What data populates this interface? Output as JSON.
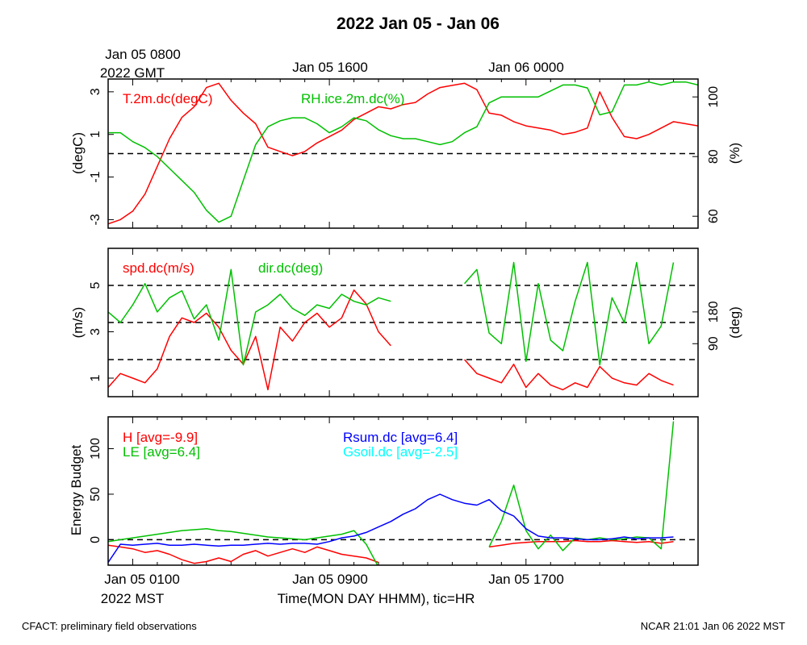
{
  "title": "2022 Jan 05 - Jan 06",
  "top_axis": {
    "labels": [
      "Jan 05 0800",
      "Jan 05 1600",
      "Jan 06 0000"
    ],
    "tz_label": "2022 GMT"
  },
  "bottom_axis": {
    "labels": [
      "Jan 05 0100",
      "Jan 05 0900",
      "Jan 05 1700"
    ],
    "tz_label": "2022 MST",
    "xlabel": "Time(MON DAY HHMM), tic=HR"
  },
  "footer": {
    "left": "CFACT: preliminary field observations",
    "right": "NCAR 21:01 Jan 06 2022 MST"
  },
  "colors": {
    "red": "#ff0000",
    "green": "#00c000",
    "blue": "#0000ff",
    "cyan": "#00ffff"
  },
  "chart_data": [
    {
      "type": "line",
      "panel": "temperature / humidity",
      "xlabel": "",
      "ylabel": "(degC)",
      "ylabel_right": "(%)",
      "ylim": [
        -3.4,
        3.6
      ],
      "ylim_right": [
        56,
        106
      ],
      "yticks": [
        -3,
        -1,
        1,
        3
      ],
      "yticks_right": [
        60,
        80,
        100
      ],
      "hlines": [
        0.1
      ],
      "series": [
        {
          "name": "T.2m.dc(degC)",
          "color": "red",
          "axis": "left",
          "x": [
            0,
            0.5,
            1,
            1.5,
            2,
            2.5,
            3,
            3.5,
            4,
            4.5,
            5,
            5.5,
            6,
            6.5,
            7,
            7.5,
            8,
            8.5,
            9,
            9.5,
            10,
            10.5,
            11,
            11.5,
            12,
            12.5,
            13,
            13.5,
            14,
            14.5,
            15,
            15.5,
            16,
            16.5,
            17,
            17.5,
            18,
            18.5,
            19,
            19.5,
            20,
            20.5,
            21,
            21.5,
            22,
            22.5,
            23,
            23.5,
            24
          ],
          "values": [
            -3.2,
            -3.0,
            -2.6,
            -1.8,
            -0.5,
            0.8,
            1.8,
            2.3,
            3.2,
            3.4,
            2.6,
            2.0,
            1.5,
            0.4,
            0.2,
            0.0,
            0.2,
            0.6,
            0.9,
            1.2,
            1.7,
            2.0,
            2.3,
            2.2,
            2.4,
            2.5,
            2.9,
            3.2,
            3.3,
            3.4,
            3.1,
            2.0,
            1.9,
            1.6,
            1.4,
            1.3,
            1.2,
            1.0,
            1.1,
            1.3,
            3.0,
            1.8,
            0.9,
            0.8,
            1.0,
            1.3,
            1.6,
            1.5,
            1.4
          ]
        },
        {
          "name": "RH.ice.2m.dc(%)",
          "color": "green",
          "axis": "right",
          "x": [
            0,
            0.5,
            1,
            1.5,
            2,
            2.5,
            3,
            3.5,
            4,
            4.5,
            5,
            5.5,
            6,
            6.5,
            7,
            7.5,
            8,
            8.5,
            9,
            9.5,
            10,
            10.5,
            11,
            11.5,
            12,
            12.5,
            13,
            13.5,
            14,
            14.5,
            15,
            15.5,
            16,
            16.5,
            17,
            17.5,
            18,
            18.5,
            19,
            19.5,
            20,
            20.5,
            21,
            21.5,
            22,
            22.5,
            23,
            23.5,
            24
          ],
          "values": [
            88,
            88,
            85,
            83,
            80,
            76,
            72,
            68,
            62,
            58,
            60,
            72,
            84,
            90,
            92,
            93,
            93,
            91,
            88,
            90,
            93,
            92,
            89,
            87,
            86,
            86,
            85,
            84,
            85,
            88,
            90,
            98,
            100,
            100,
            100,
            100,
            102,
            104,
            104,
            103,
            94,
            95,
            104,
            104,
            105,
            104,
            105,
            105,
            104
          ]
        }
      ]
    },
    {
      "type": "line",
      "panel": "wind",
      "xlabel": "",
      "ylabel": "(m/s)",
      "ylabel_right": "(deg)",
      "ylim": [
        0.2,
        6.6
      ],
      "ylim_right": [
        -60,
        360
      ],
      "yticks": [
        1,
        3,
        5
      ],
      "yticks_right": [
        90,
        180
      ],
      "hlines": [
        1.8,
        3.4,
        5.0
      ],
      "series": [
        {
          "name": "spd.dc(m/s)",
          "color": "red",
          "axis": "left",
          "x": [
            0,
            0.5,
            1,
            1.5,
            2,
            2.5,
            3,
            3.5,
            4,
            4.5,
            5,
            5.5,
            6,
            6.5,
            7,
            7.5,
            8,
            8.5,
            9,
            9.5,
            10,
            10.5,
            11,
            11.5,
            14.5,
            15,
            15.5,
            16,
            16.5,
            17,
            17.5,
            18,
            18.5,
            19,
            19.5,
            20,
            20.5,
            21,
            21.5,
            22,
            22.5,
            23
          ],
          "values": [
            0.6,
            1.2,
            1.0,
            0.8,
            1.4,
            2.8,
            3.6,
            3.4,
            3.8,
            3.2,
            2.2,
            1.6,
            2.8,
            0.5,
            3.2,
            2.6,
            3.4,
            3.8,
            3.2,
            3.6,
            4.8,
            4.2,
            3.0,
            2.4,
            1.8,
            1.2,
            1.0,
            0.8,
            1.6,
            0.6,
            1.2,
            0.7,
            0.5,
            0.8,
            0.6,
            1.5,
            1.0,
            0.8,
            0.7,
            1.2,
            0.9,
            0.7
          ]
        },
        {
          "name": "dir.dc(deg)",
          "color": "green",
          "axis": "right",
          "x": [
            0,
            0.5,
            1,
            1.5,
            2,
            2.5,
            3,
            3.5,
            4,
            4.5,
            5,
            5.5,
            6,
            6.5,
            7,
            7.5,
            8,
            8.5,
            9,
            9.5,
            10,
            10.5,
            11,
            11.5,
            14.5,
            15,
            15.5,
            16,
            16.5,
            17,
            17.5,
            18,
            18.5,
            19,
            19.5,
            20,
            20.5,
            21,
            21.5,
            22,
            22.5,
            23
          ],
          "values": [
            180,
            150,
            200,
            260,
            180,
            220,
            240,
            160,
            200,
            100,
            300,
            30,
            180,
            200,
            230,
            190,
            170,
            200,
            190,
            230,
            210,
            200,
            220,
            210,
            260,
            300,
            120,
            90,
            320,
            40,
            260,
            100,
            70,
            210,
            320,
            30,
            220,
            150,
            320,
            90,
            140,
            320
          ]
        }
      ]
    },
    {
      "type": "line",
      "panel": "energy budget",
      "xlabel": "Time(MON DAY HHMM), tic=HR",
      "ylabel": "Energy Budget",
      "ylim": [
        -28,
        135
      ],
      "yticks": [
        0,
        50,
        100
      ],
      "hlines": [
        0
      ],
      "series": [
        {
          "name": "H [avg=-9.9]",
          "color": "red",
          "x": [
            0,
            0.5,
            1,
            1.5,
            2,
            2.5,
            3,
            3.5,
            4,
            4.5,
            5,
            5.5,
            6,
            6.5,
            7,
            7.5,
            8,
            8.5,
            9,
            9.5,
            10,
            10.5,
            11,
            15.5,
            16,
            16.5,
            17,
            17.5,
            18,
            18.5,
            19,
            19.5,
            20,
            20.5,
            21,
            21.5,
            22,
            22.5,
            23
          ],
          "values": [
            -6,
            -8,
            -10,
            -14,
            -12,
            -16,
            -22,
            -26,
            -24,
            -20,
            -24,
            -16,
            -12,
            -18,
            -14,
            -10,
            -14,
            -8,
            -12,
            -16,
            -18,
            -20,
            -25,
            -8,
            -6,
            -4,
            -3,
            -2,
            -2,
            -2,
            -1,
            -2,
            -2,
            -1,
            -2,
            -3,
            -2,
            -4,
            -2
          ]
        },
        {
          "name": "LE [avg=6.4]",
          "color": "green",
          "x": [
            0,
            0.5,
            1,
            1.5,
            2,
            2.5,
            3,
            3.5,
            4,
            4.5,
            5,
            5.5,
            6,
            6.5,
            7,
            7.5,
            8,
            8.5,
            9,
            9.5,
            10,
            10.5,
            11,
            15.5,
            16,
            16.5,
            17,
            17.5,
            18,
            18.5,
            19,
            19.5,
            20,
            20.5,
            21,
            21.5,
            22,
            22.5,
            23
          ],
          "values": [
            -2,
            0,
            2,
            4,
            6,
            8,
            10,
            11,
            12,
            10,
            9,
            7,
            5,
            3,
            2,
            1,
            0,
            2,
            4,
            6,
            10,
            -5,
            -30,
            -8,
            20,
            60,
            10,
            -10,
            5,
            -12,
            2,
            0,
            2,
            0,
            1,
            3,
            2,
            -10,
            130
          ]
        },
        {
          "name": "Rsum.dc [avg=6.4]",
          "color": "blue",
          "x": [
            0,
            0.5,
            1,
            1.5,
            2,
            2.5,
            3,
            3.5,
            4,
            4.5,
            5,
            5.5,
            6,
            6.5,
            7,
            7.5,
            8,
            8.5,
            9,
            9.5,
            10,
            10.5,
            11,
            11.5,
            12,
            12.5,
            13,
            13.5,
            14,
            14.5,
            15,
            15.5,
            16,
            16.5,
            17,
            17.5,
            18,
            18.5,
            19,
            19.5,
            20,
            20.5,
            21,
            21.5,
            22,
            22.5,
            23
          ],
          "values": [
            -25,
            -5,
            -6,
            -5,
            -4,
            -6,
            -6,
            -5,
            -6,
            -7,
            -6,
            -6,
            -5,
            -4,
            -5,
            -4,
            -4,
            -5,
            -2,
            2,
            4,
            8,
            14,
            20,
            28,
            34,
            44,
            50,
            44,
            40,
            38,
            44,
            32,
            26,
            12,
            4,
            2,
            2,
            1,
            0,
            0,
            1,
            3,
            1,
            2,
            2,
            3
          ]
        },
        {
          "name": "Gsoil.dc [avg=-2.5]",
          "color": "cyan",
          "x": [
            0,
            4,
            8,
            12,
            16,
            20,
            24
          ],
          "values": [
            -3,
            -2.5,
            -2.5,
            -2.5,
            -2.5,
            -2.5,
            -2.5
          ]
        }
      ]
    }
  ]
}
